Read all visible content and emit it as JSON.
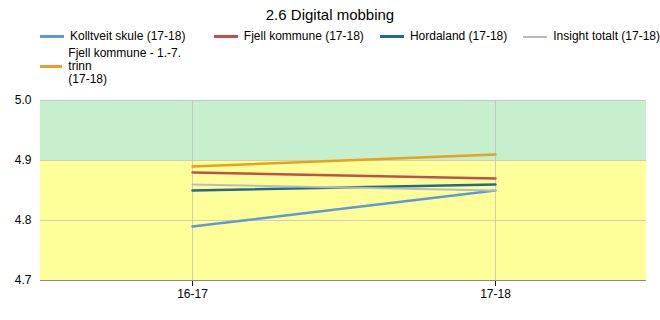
{
  "chart_data": {
    "type": "line",
    "title": "2.6 Digital mobbing",
    "categories": [
      "16-17",
      "17-18"
    ],
    "series": [
      {
        "name": "Kolltveit skule (17-18)",
        "color": "#5B9BD5",
        "values": [
          4.79,
          4.85
        ]
      },
      {
        "name": "Fjell kommune (17-18)",
        "color": "#C0504D",
        "values": [
          4.88,
          4.87
        ]
      },
      {
        "name": "Hordaland (17-18)",
        "color": "#1F6B8A",
        "values": [
          4.85,
          4.86
        ]
      },
      {
        "name": "Insight totalt (17-18)",
        "color": "#BBBBBB",
        "values": [
          4.86,
          4.85
        ]
      },
      {
        "name": "Fjell kommune - 1.-7. trinn\n(17-18)",
        "color": "#E8A020",
        "values": [
          4.89,
          4.91
        ]
      }
    ],
    "bands": [
      {
        "from": 4.9,
        "to": 5.0,
        "color": "#C6EFCE"
      },
      {
        "from": 4.7,
        "to": 4.9,
        "color": "#FFFF99"
      }
    ],
    "ylim": [
      4.7,
      5.0
    ],
    "yticks": [
      4.7,
      4.8,
      4.9,
      {
        "value": 5.0,
        "label": "5.0"
      }
    ],
    "grid": true,
    "legend": "top"
  }
}
